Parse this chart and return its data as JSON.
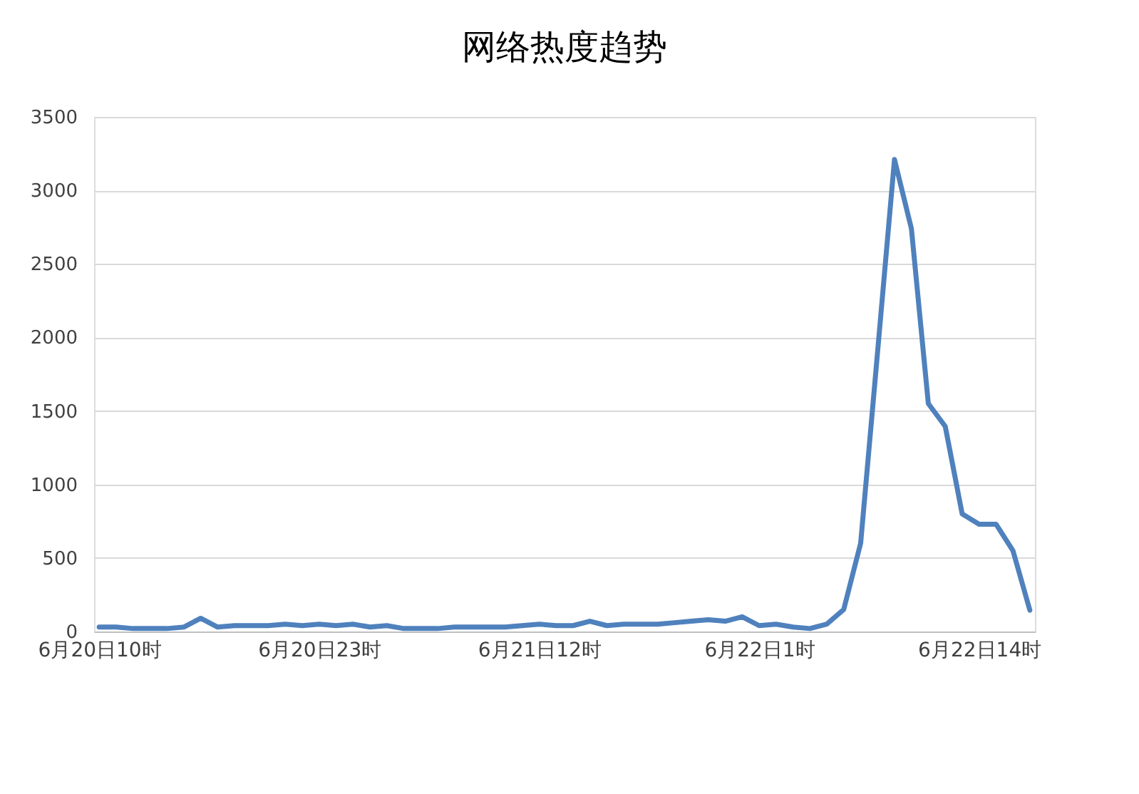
{
  "chart_data": {
    "type": "line",
    "title": "网络热度趋势",
    "categories": [
      "6月20日10时",
      null,
      null,
      null,
      null,
      null,
      null,
      null,
      null,
      null,
      null,
      null,
      null,
      "6月20日23时",
      null,
      null,
      null,
      null,
      null,
      null,
      null,
      null,
      null,
      null,
      null,
      null,
      "6月21日12时",
      null,
      null,
      null,
      null,
      null,
      null,
      null,
      null,
      null,
      null,
      null,
      null,
      "6月22日1时",
      null,
      null,
      null,
      null,
      null,
      null,
      null,
      null,
      null,
      null,
      null,
      null,
      "6月22日14时",
      null,
      null,
      null
    ],
    "series": [
      {
        "color": "#4f81bd",
        "values": [
          30,
          30,
          20,
          20,
          20,
          30,
          90,
          30,
          40,
          40,
          40,
          50,
          40,
          50,
          40,
          50,
          30,
          40,
          20,
          20,
          20,
          30,
          30,
          30,
          30,
          40,
          50,
          40,
          40,
          70,
          40,
          50,
          50,
          50,
          60,
          70,
          80,
          70,
          100,
          40,
          50,
          30,
          20,
          50,
          150,
          600,
          1900,
          3210,
          2740,
          1550,
          1395,
          800,
          730,
          730,
          550,
          145
        ]
      }
    ],
    "ylim": [
      0,
      3500
    ],
    "yticks": [
      0,
      500,
      1000,
      1500,
      2000,
      2500,
      3000,
      3500
    ],
    "grid": "y",
    "marker": "none",
    "line_style": "solid"
  }
}
